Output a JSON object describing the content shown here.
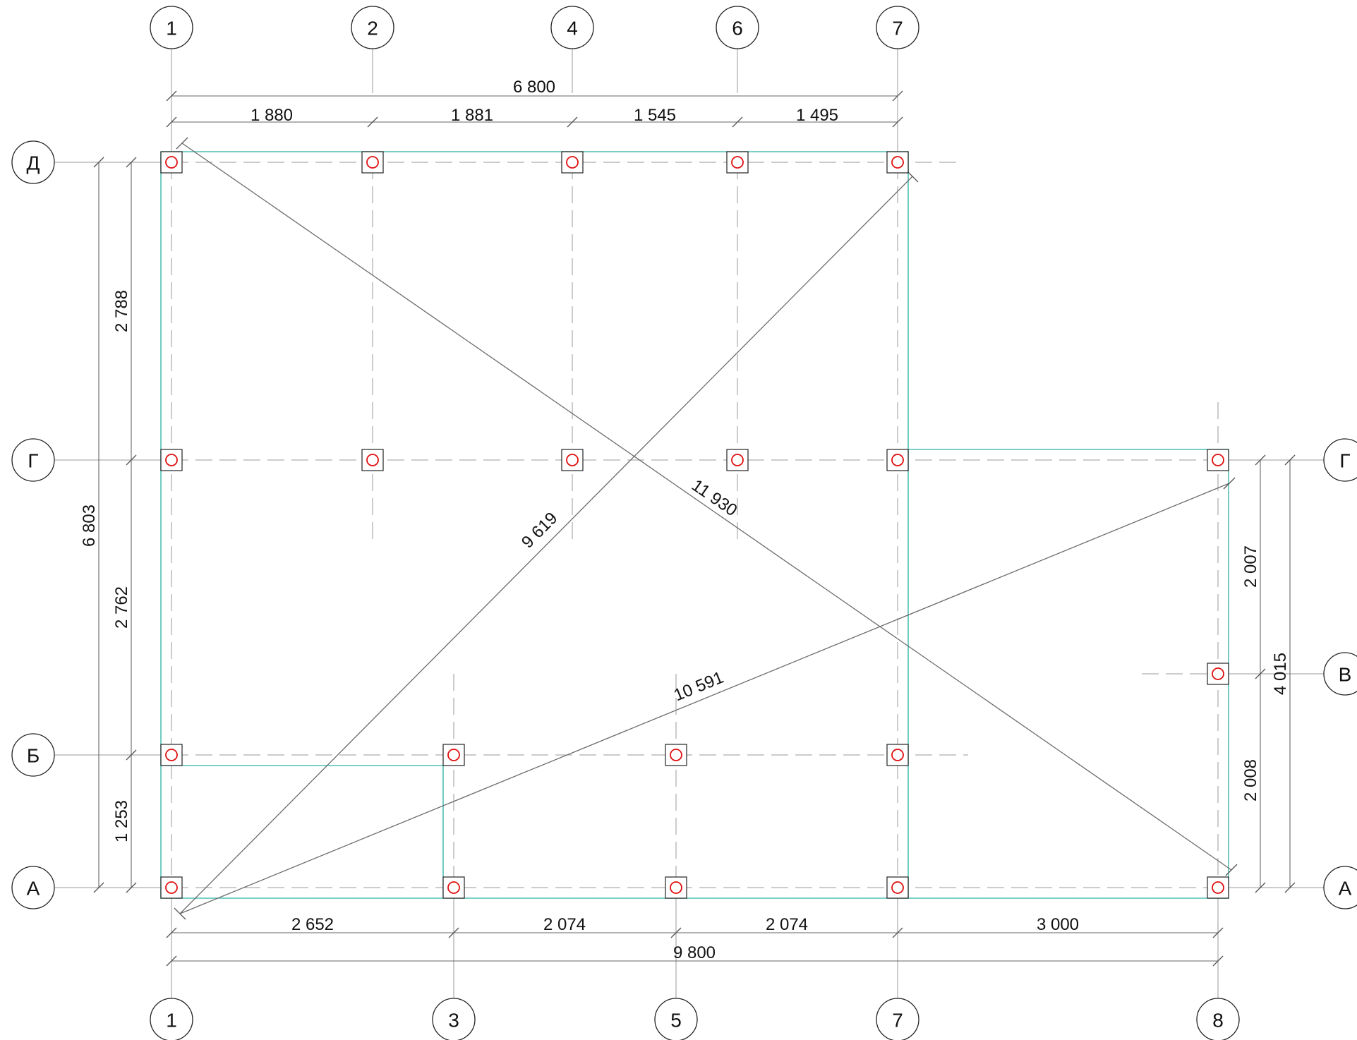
{
  "axes_top": [
    "1",
    "2",
    "4",
    "6",
    "7"
  ],
  "axes_bottom": [
    "1",
    "3",
    "5",
    "7",
    "8"
  ],
  "axes_left": [
    "Д",
    "Г",
    "Б",
    "А"
  ],
  "axes_right": [
    "Г",
    "В",
    "А"
  ],
  "dims": {
    "top_total": "6 800",
    "top_segments": [
      "1 880",
      "1 881",
      "1 545",
      "1 495"
    ],
    "bottom_segments": [
      "2 652",
      "2 074",
      "2 074",
      "3 000"
    ],
    "bottom_total": "9 800",
    "left_total": "6 803",
    "left_segments": [
      "2 788",
      "2 762",
      "1 253"
    ],
    "right_total": "4 015",
    "right_segments": [
      "2 007",
      "2 008"
    ]
  },
  "diagonals": [
    "11 930",
    "9 619",
    "10 591"
  ],
  "colors": {
    "outline": "#4fc0b4",
    "column_marker": "#e01010",
    "grid": "#9a9a9a",
    "text": "#111111"
  }
}
